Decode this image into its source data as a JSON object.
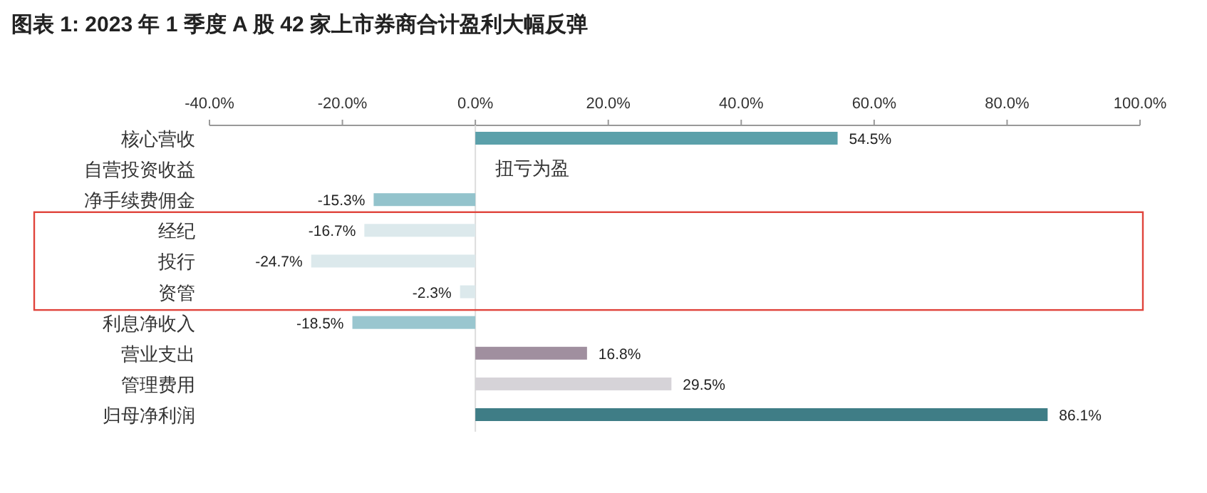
{
  "chart_data": {
    "type": "bar",
    "orientation": "horizontal",
    "title": "图表 1: 2023 年 1 季度 A 股 42 家上市券商合计盈利大幅反弹",
    "categories": [
      "核心营收",
      "自营投资收益",
      "净手续费佣金",
      "经纪",
      "投行",
      "资管",
      "利息净收入",
      "营业支出",
      "管理费用",
      "归母净利润"
    ],
    "values": [
      54.5,
      null,
      -15.3,
      -16.7,
      -24.7,
      -2.3,
      -18.5,
      16.8,
      29.5,
      86.1
    ],
    "colors": [
      "#5ba0aa",
      null,
      "#93c3cc",
      "#dce9ec",
      "#dce9ec",
      "#dce9ec",
      "#99c6cf",
      "#a08f9f",
      "#d6d3d8",
      "#3f7d86"
    ],
    "value_labels": [
      "54.5%",
      null,
      "-15.3%",
      "-16.7%",
      "-24.7%",
      "-2.3%",
      "-18.5%",
      "16.8%",
      "29.5%",
      "86.1%"
    ],
    "xlim": [
      -40,
      100
    ],
    "xticks": [
      {
        "value": -40,
        "label": "-40.0%"
      },
      {
        "value": -20,
        "label": "-20.0%"
      },
      {
        "value": 0,
        "label": "0.0%"
      },
      {
        "value": 20,
        "label": "20.0%"
      },
      {
        "value": 40,
        "label": "40.0%"
      },
      {
        "value": 60,
        "label": "60.0%"
      },
      {
        "value": 80,
        "label": "80.0%"
      },
      {
        "value": 100,
        "label": "100.0%"
      }
    ],
    "annotations": [
      "扭亏为盈"
    ]
  }
}
